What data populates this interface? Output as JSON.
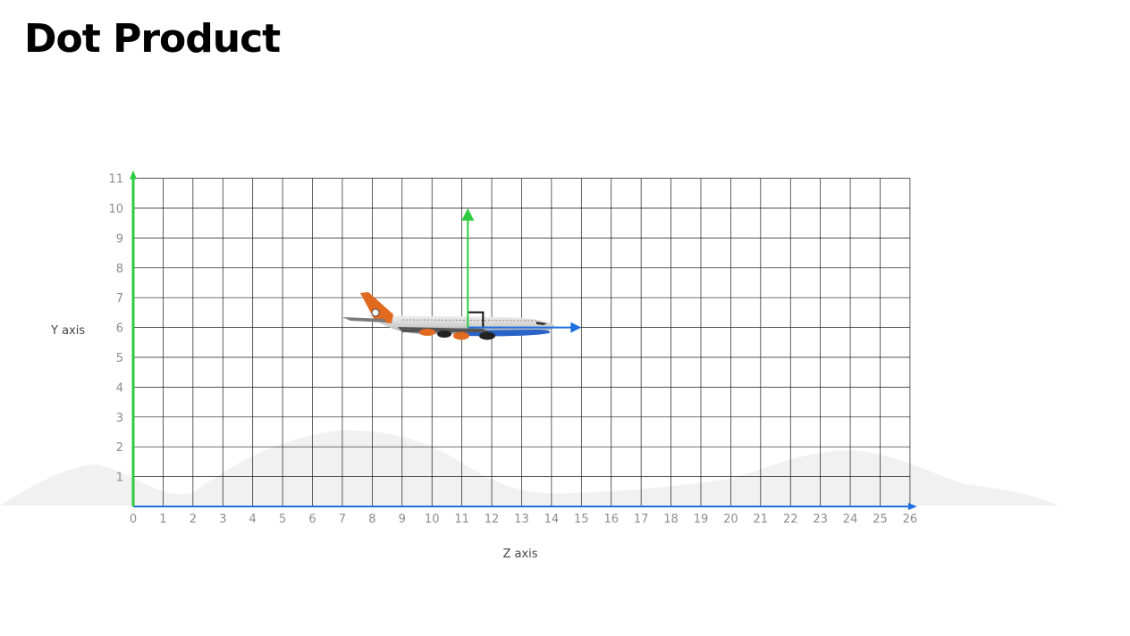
{
  "title": "Dot Product",
  "axes": {
    "x_label": "Z axis",
    "y_label": "Y axis",
    "x_ticks": [
      "0",
      "1",
      "2",
      "3",
      "4",
      "5",
      "6",
      "7",
      "8",
      "9",
      "10",
      "11",
      "12",
      "13",
      "14",
      "15",
      "16",
      "17",
      "18",
      "19",
      "20",
      "21",
      "22",
      "23",
      "24",
      "25",
      "26"
    ],
    "y_ticks": [
      "1",
      "2",
      "3",
      "4",
      "5",
      "6",
      "7",
      "8",
      "9",
      "10",
      "11"
    ],
    "x_range": [
      0,
      26
    ],
    "y_range": [
      0,
      11
    ]
  },
  "vectors": {
    "forward": {
      "from": [
        11.2,
        6
      ],
      "to": [
        15,
        6
      ],
      "color": "#1e6fe0"
    },
    "up": {
      "from": [
        11.2,
        6
      ],
      "to": [
        11.2,
        10
      ],
      "color": "#2ecc40"
    }
  },
  "airplane": {
    "position": [
      11,
      6
    ]
  },
  "colors": {
    "x_axis": "#1e6fe0",
    "y_axis": "#2ecc40",
    "grid": "#1a1a1a",
    "tick": "#8c8c8c",
    "plane_tail": "#e06a1f",
    "plane_body": "#d9d9d9",
    "plane_belly": "#2a63c8"
  }
}
